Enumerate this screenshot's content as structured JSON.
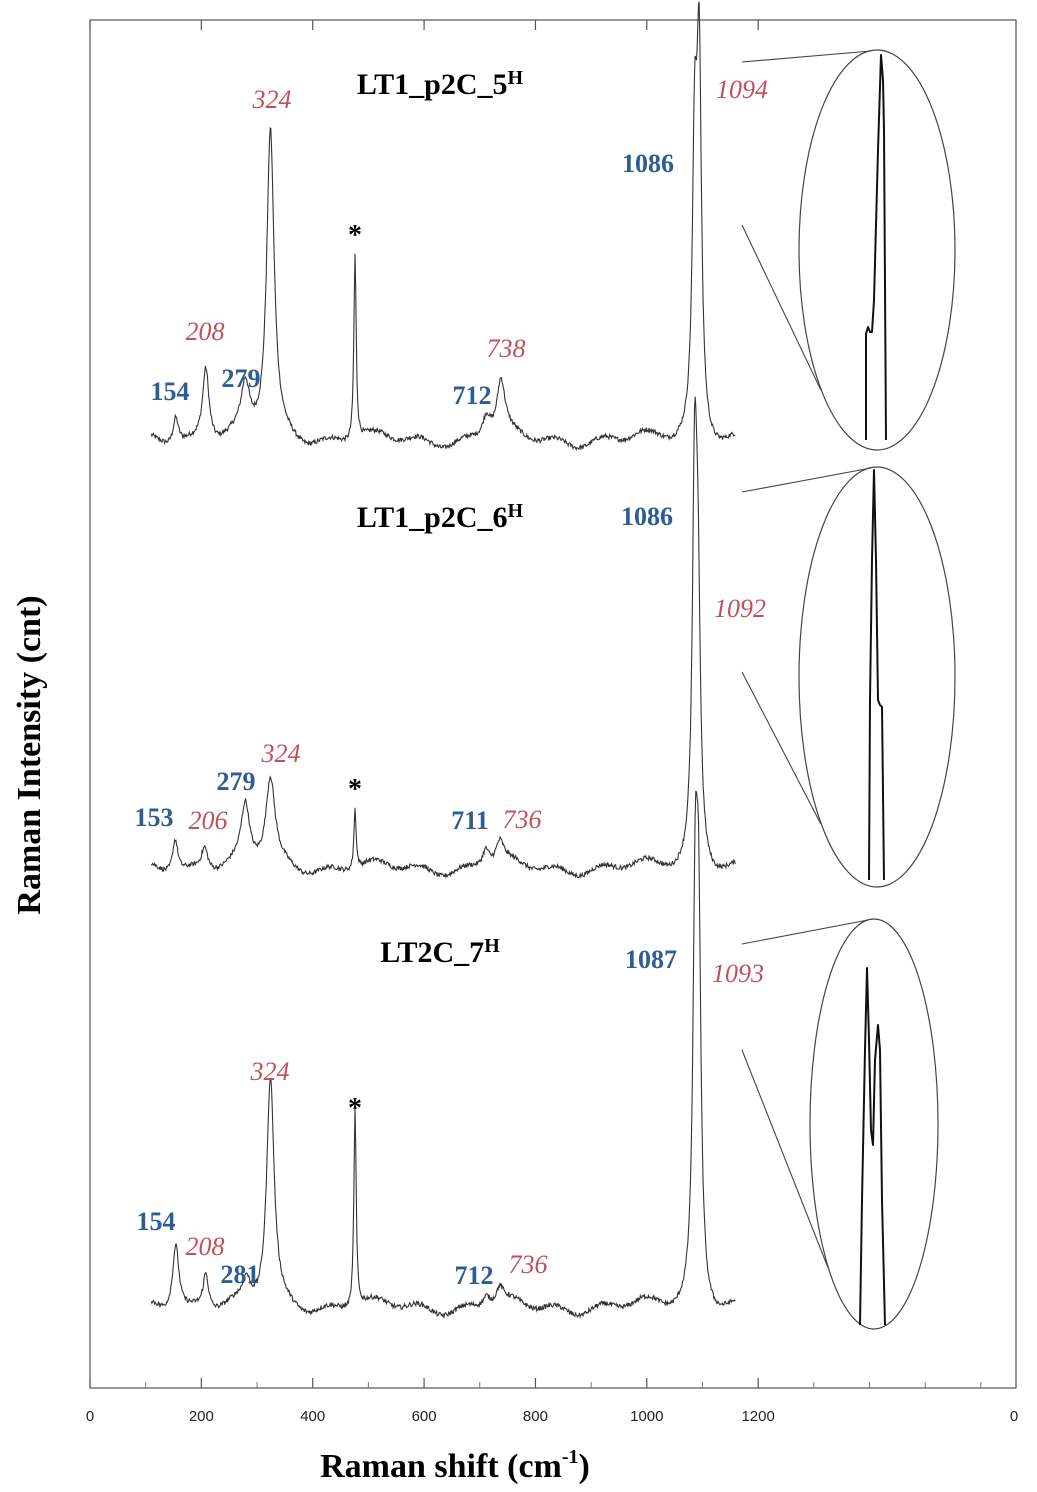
{
  "chart_data": {
    "type": "line",
    "xlabel": "Raman shift (cm",
    "xlabel_sup": "-1",
    "xlabel_end": ")",
    "ylabel": "Raman Intensity (cnt)",
    "xlim": [
      0,
      1650
    ],
    "xticks": [
      0,
      200,
      400,
      600,
      800,
      1000,
      1200
    ],
    "xtick_labels": [
      "0",
      "200",
      "400",
      "600",
      "800",
      "1000",
      "1200"
    ],
    "right_tick_label": "0",
    "spectra": [
      {
        "title": "LT1_p2C_5",
        "title_sup": "H",
        "x_range": [
          110,
          1160
        ],
        "peaks": [
          {
            "x": 154,
            "h": 0.07,
            "w": 6
          },
          {
            "x": 208,
            "h": 0.19,
            "w": 7
          },
          {
            "x": 279,
            "h": 0.12,
            "w": 9
          },
          {
            "x": 324,
            "h": 0.79,
            "w": 8
          },
          {
            "x": 476,
            "h": 0.48,
            "w": 2.5
          },
          {
            "x": 712,
            "h": 0.06,
            "w": 9
          },
          {
            "x": 738,
            "h": 0.14,
            "w": 9
          },
          {
            "x": 1086,
            "h": 0.7,
            "w": 5
          },
          {
            "x": 1094,
            "h": 0.93,
            "w": 5
          }
        ],
        "labels": [
          {
            "text": "154",
            "x": 154,
            "color": "blue"
          },
          {
            "text": "208",
            "x": 208,
            "color": "red"
          },
          {
            "text": "279",
            "x": 279,
            "color": "blue"
          },
          {
            "text": "324",
            "x": 324,
            "color": "red"
          },
          {
            "text": "*",
            "x": 476,
            "color": "black"
          },
          {
            "text": "712",
            "x": 712,
            "color": "blue"
          },
          {
            "text": "738",
            "x": 738,
            "color": "red"
          },
          {
            "text": "1086",
            "x": 1086,
            "color": "blue"
          },
          {
            "text": "1094",
            "x": 1094,
            "color": "red"
          }
        ]
      },
      {
        "title": "LT1_p2C_6",
        "title_sup": "H",
        "x_range": [
          110,
          1160
        ],
        "peaks": [
          {
            "x": 153,
            "h": 0.09,
            "w": 6
          },
          {
            "x": 206,
            "h": 0.06,
            "w": 7
          },
          {
            "x": 279,
            "h": 0.15,
            "w": 9
          },
          {
            "x": 324,
            "h": 0.23,
            "w": 10
          },
          {
            "x": 476,
            "h": 0.16,
            "w": 2.5
          },
          {
            "x": 711,
            "h": 0.05,
            "w": 8
          },
          {
            "x": 736,
            "h": 0.06,
            "w": 9
          },
          {
            "x": 1086,
            "h": 0.98,
            "w": 5
          },
          {
            "x": 1092,
            "h": 0.6,
            "w": 5
          }
        ],
        "labels": [
          {
            "text": "153",
            "x": 153,
            "color": "blue"
          },
          {
            "text": "206",
            "x": 206,
            "color": "red"
          },
          {
            "text": "279",
            "x": 279,
            "color": "blue"
          },
          {
            "text": "324",
            "x": 324,
            "color": "red"
          },
          {
            "text": "*",
            "x": 476,
            "color": "black"
          },
          {
            "text": "711",
            "x": 711,
            "color": "blue"
          },
          {
            "text": "736",
            "x": 736,
            "color": "red"
          },
          {
            "text": "1086",
            "x": 1086,
            "color": "blue"
          },
          {
            "text": "1092",
            "x": 1092,
            "color": "red"
          }
        ]
      },
      {
        "title": "LT2C_7",
        "title_sup": "H",
        "x_range": [
          110,
          1160
        ],
        "peaks": [
          {
            "x": 154,
            "h": 0.17,
            "w": 7
          },
          {
            "x": 208,
            "h": 0.09,
            "w": 6
          },
          {
            "x": 281,
            "h": 0.05,
            "w": 7
          },
          {
            "x": 324,
            "h": 0.57,
            "w": 8
          },
          {
            "x": 476,
            "h": 0.5,
            "w": 2.5
          },
          {
            "x": 712,
            "h": 0.03,
            "w": 8
          },
          {
            "x": 736,
            "h": 0.04,
            "w": 8
          },
          {
            "x": 1087,
            "h": 0.9,
            "w": 5
          },
          {
            "x": 1093,
            "h": 0.84,
            "w": 5
          }
        ],
        "labels": [
          {
            "text": "154",
            "x": 154,
            "color": "blue"
          },
          {
            "text": "208",
            "x": 208,
            "color": "red"
          },
          {
            "text": "281",
            "x": 281,
            "color": "blue"
          },
          {
            "text": "324",
            "x": 324,
            "color": "red"
          },
          {
            "text": "*",
            "x": 476,
            "color": "black"
          },
          {
            "text": "712",
            "x": 712,
            "color": "blue"
          },
          {
            "text": "736",
            "x": 736,
            "color": "red"
          },
          {
            "text": "1087",
            "x": 1087,
            "color": "blue"
          },
          {
            "text": "1093",
            "x": 1093,
            "color": "red"
          }
        ]
      }
    ],
    "colors": {
      "line": "#333333",
      "blue_label": "#2e5d93",
      "red_label": "#c0505a"
    }
  }
}
